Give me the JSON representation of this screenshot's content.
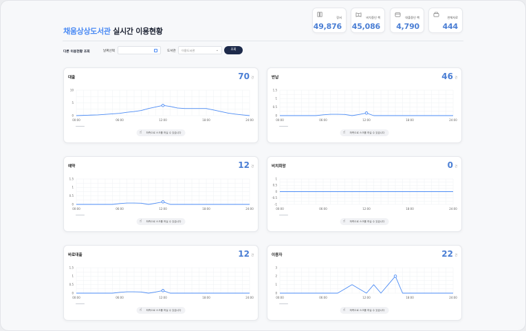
{
  "header": {
    "library_name": "채움상상도서관",
    "title_suffix": "실시간 이용현황"
  },
  "stats": [
    {
      "icon": "book-icon",
      "label": "장서",
      "value": "49,876"
    },
    {
      "icon": "book-open-icon",
      "label": "비치중인 책",
      "value": "45,086"
    },
    {
      "icon": "book-lend-icon",
      "label": "대출중인 책",
      "value": "4,790"
    },
    {
      "icon": "archive-icon",
      "label": "연체자료",
      "value": "444"
    }
  ],
  "filters": {
    "heading": "다른 이용현황 조회",
    "date_label": "날짜선택",
    "date_value": "",
    "library_label": "도서관",
    "library_value": "이용도서관",
    "search_button": "조회"
  },
  "charts": [
    {
      "title": "대출",
      "count": "70",
      "unit": "건",
      "hint": "좌측으로 스크롤 하실 수 있습니다"
    },
    {
      "title": "반납",
      "count": "46",
      "unit": "건",
      "hint": "좌측으로 스크롤 하실 수 있습니다"
    },
    {
      "title": "예약",
      "count": "12",
      "unit": "건",
      "hint": "좌측으로 스크롤 하실 수 있습니다"
    },
    {
      "title": "비치희망",
      "count": "0",
      "unit": "건",
      "hint": "좌측으로 스크롤 하실 수 있습니다"
    },
    {
      "title": "바로대출",
      "count": "12",
      "unit": "건",
      "hint": "좌측으로 스크롤 하실 수 있습니다"
    },
    {
      "title": "이용자",
      "count": "22",
      "unit": "건",
      "hint": "좌측으로 스크롤 하실 수 있습니다"
    }
  ],
  "chart_data": [
    {
      "type": "line",
      "x": [
        "00:00",
        "01:00",
        "02:00",
        "03:00",
        "04:00",
        "05:00",
        "06:00",
        "07:00",
        "08:00",
        "09:00",
        "10:00",
        "11:00",
        "12:00",
        "13:00",
        "14:00",
        "15:00",
        "16:00",
        "17:00",
        "18:00",
        "19:00",
        "20:00",
        "21:00",
        "22:00",
        "23:00",
        "24:00"
      ],
      "xticks": [
        "00:00",
        "06:00",
        "12:00",
        "18:00",
        "24:00"
      ],
      "yticks": [
        "0",
        "5",
        "10"
      ],
      "ylim": [
        0,
        10
      ],
      "values": [
        0,
        0.1,
        0.2,
        0.3,
        0.5,
        0.7,
        0.9,
        1.3,
        1.6,
        2.0,
        2.8,
        3.4,
        4.0,
        3.6,
        3.0,
        2.8,
        2.8,
        2.8,
        2.8,
        2.2,
        1.6,
        1.0,
        0.6,
        0.3,
        0
      ],
      "highlight": 12,
      "grid": true
    },
    {
      "type": "line",
      "x": [
        "00:00",
        "01:00",
        "02:00",
        "03:00",
        "04:00",
        "05:00",
        "06:00",
        "07:00",
        "08:00",
        "09:00",
        "10:00",
        "11:00",
        "12:00",
        "13:00",
        "14:00",
        "15:00",
        "16:00",
        "17:00",
        "18:00",
        "19:00",
        "20:00",
        "21:00",
        "22:00",
        "23:00",
        "24:00"
      ],
      "xticks": [
        "00:00",
        "06:00",
        "12:00",
        "18:00",
        "24:00"
      ],
      "yticks": [
        "0",
        "0.5",
        "1",
        "1.5"
      ],
      "ylim": [
        0,
        1.5
      ],
      "values": [
        0,
        0,
        0,
        0,
        0,
        0,
        0.05,
        0.08,
        0.08,
        0.07,
        0,
        0.07,
        0.15,
        0,
        0,
        0,
        0,
        0,
        0,
        0,
        0,
        0,
        0,
        0,
        0
      ],
      "highlight": 12,
      "grid": true
    },
    {
      "type": "line",
      "x": [
        "00:00",
        "01:00",
        "02:00",
        "03:00",
        "04:00",
        "05:00",
        "06:00",
        "07:00",
        "08:00",
        "09:00",
        "10:00",
        "11:00",
        "12:00",
        "13:00",
        "14:00",
        "15:00",
        "16:00",
        "17:00",
        "18:00",
        "19:00",
        "20:00",
        "21:00",
        "22:00",
        "23:00",
        "24:00"
      ],
      "xticks": [
        "00:00",
        "06:00",
        "12:00",
        "18:00",
        "24:00"
      ],
      "yticks": [
        "0",
        "0.5",
        "1",
        "1.5"
      ],
      "ylim": [
        0,
        1.5
      ],
      "values": [
        0,
        0,
        0,
        0,
        0,
        0,
        0.05,
        0.08,
        0.08,
        0.07,
        0,
        0.07,
        0.15,
        0,
        0,
        0,
        0,
        0,
        0,
        0,
        0,
        0,
        0,
        0,
        0
      ],
      "highlight": 12,
      "grid": true
    },
    {
      "type": "line",
      "x": [
        "00:00",
        "01:00",
        "02:00",
        "03:00",
        "04:00",
        "05:00",
        "06:00",
        "07:00",
        "08:00",
        "09:00",
        "10:00",
        "11:00",
        "12:00",
        "13:00",
        "14:00",
        "15:00",
        "16:00",
        "17:00",
        "18:00",
        "19:00",
        "20:00",
        "21:00",
        "22:00",
        "23:00",
        "24:00"
      ],
      "xticks": [
        "00:00",
        "06:00",
        "12:00",
        "18:00",
        "24:00"
      ],
      "yticks": [
        "-1",
        "-0.5",
        "0",
        "0.5",
        "1"
      ],
      "ylim": [
        -1,
        1
      ],
      "values": [
        0,
        0,
        0,
        0,
        0,
        0,
        0,
        0,
        0,
        0,
        0,
        0,
        0,
        0,
        0,
        0,
        0,
        0,
        0,
        0,
        0,
        0,
        0,
        0,
        0
      ],
      "highlight": null,
      "grid": true
    },
    {
      "type": "line",
      "x": [
        "00:00",
        "01:00",
        "02:00",
        "03:00",
        "04:00",
        "05:00",
        "06:00",
        "07:00",
        "08:00",
        "09:00",
        "10:00",
        "11:00",
        "12:00",
        "13:00",
        "14:00",
        "15:00",
        "16:00",
        "17:00",
        "18:00",
        "19:00",
        "20:00",
        "21:00",
        "22:00",
        "23:00",
        "24:00"
      ],
      "xticks": [
        "00:00",
        "06:00",
        "12:00",
        "18:00",
        "24:00"
      ],
      "yticks": [
        "0",
        "0.5",
        "1",
        "1.5"
      ],
      "ylim": [
        0,
        1.5
      ],
      "values": [
        0,
        0,
        0,
        0,
        0,
        0,
        0.05,
        0.08,
        0.08,
        0.07,
        0,
        0.07,
        0.15,
        0,
        0,
        0,
        0,
        0,
        0,
        0,
        0,
        0,
        0,
        0,
        0
      ],
      "highlight": 12,
      "grid": true
    },
    {
      "type": "line",
      "x": [
        "00:00",
        "01:00",
        "02:00",
        "03:00",
        "04:00",
        "05:00",
        "06:00",
        "07:00",
        "08:00",
        "09:00",
        "10:00",
        "11:00",
        "12:00",
        "13:00",
        "14:00",
        "15:00",
        "16:00",
        "17:00",
        "18:00",
        "19:00",
        "20:00",
        "21:00",
        "22:00",
        "23:00",
        "24:00"
      ],
      "xticks": [
        "00:00",
        "06:00",
        "12:00",
        "18:00",
        "24:00"
      ],
      "yticks": [
        "0",
        "1",
        "2",
        "3"
      ],
      "ylim": [
        0,
        3
      ],
      "values": [
        0,
        0,
        0,
        0,
        0,
        0,
        0,
        0,
        0,
        0.5,
        1,
        0.5,
        0,
        1,
        0,
        1,
        2,
        0,
        0,
        0,
        0,
        0,
        0,
        0,
        0
      ],
      "highlight": 16,
      "grid": true
    }
  ],
  "colors": {
    "accent": "#4a8af4",
    "value": "#4a7ed4",
    "button": "#1d2a4a"
  }
}
